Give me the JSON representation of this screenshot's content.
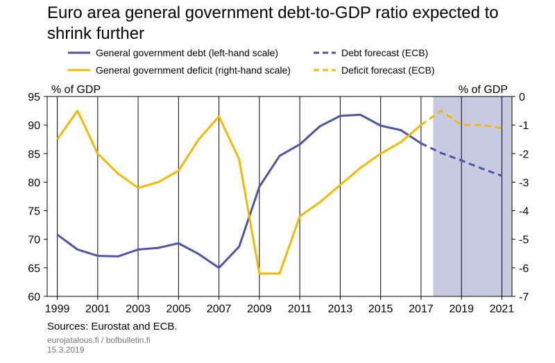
{
  "header": {
    "title": "Euro area general government debt-to-GDP ratio expected to shrink further"
  },
  "legend": [
    {
      "label": "General government debt (left-hand scale)",
      "color": "#4b55a3",
      "dashed": false
    },
    {
      "label": "Debt forecast (ECB)",
      "color": "#4b55a3",
      "dashed": true
    },
    {
      "label": "General government deficit (right-hand scale)",
      "color": "#f5b800",
      "dashed": false
    },
    {
      "label": "Deficit forecast (ECB)",
      "color": "#f5b800",
      "dashed": true
    }
  ],
  "chart_data": {
    "type": "line",
    "title": "Euro area general government debt-to-GDP ratio expected to shrink further",
    "xlim": [
      1998.5,
      2021.5
    ],
    "x_ticks": [
      1999,
      2001,
      2003,
      2005,
      2007,
      2009,
      2011,
      2013,
      2015,
      2017,
      2019,
      2021
    ],
    "ylabel_left": "% of GDP",
    "ylabel_right": "% of GDP",
    "ylim_left": [
      60,
      95
    ],
    "y_ticks_left": [
      60,
      65,
      70,
      75,
      80,
      85,
      90,
      95
    ],
    "ylim_right": [
      -7,
      0
    ],
    "y_ticks_right": [
      -7,
      -6,
      -5,
      -4,
      -3,
      -2,
      -1,
      0
    ],
    "forecast_region": [
      2017.6,
      2021.5
    ],
    "forecast_shade_color": "#c8c9e3",
    "grid": "vertical",
    "series": [
      {
        "name": "General government debt (left-hand scale)",
        "axis": "left",
        "color": "#4b55a3",
        "dashed": false,
        "x": [
          1999,
          2000,
          2001,
          2002,
          2003,
          2004,
          2005,
          2006,
          2007,
          2008,
          2009,
          2010,
          2011,
          2012,
          2013,
          2014,
          2015,
          2016,
          2017
        ],
        "y": [
          70.8,
          68.2,
          67.1,
          67.0,
          68.2,
          68.5,
          69.3,
          67.4,
          65.0,
          68.7,
          79.2,
          84.6,
          86.6,
          89.8,
          91.6,
          91.8,
          89.9,
          89.1,
          86.8
        ]
      },
      {
        "name": "Debt forecast (ECB)",
        "axis": "left",
        "color": "#4b55a3",
        "dashed": true,
        "x": [
          2017,
          2018,
          2019,
          2020,
          2021
        ],
        "y": [
          86.8,
          85.1,
          83.8,
          82.4,
          81.1
        ]
      },
      {
        "name": "General government deficit (right-hand scale)",
        "axis": "right",
        "color": "#f5b800",
        "dashed": false,
        "x": [
          1999,
          2000,
          2001,
          2002,
          2003,
          2004,
          2005,
          2006,
          2007,
          2008,
          2009,
          2010,
          2011,
          2012,
          2013,
          2014,
          2015,
          2016,
          2017
        ],
        "y": [
          -1.5,
          -0.5,
          -2.0,
          -2.7,
          -3.2,
          -3.0,
          -2.6,
          -1.5,
          -0.7,
          -2.2,
          -6.2,
          -6.2,
          -4.2,
          -3.7,
          -3.1,
          -2.5,
          -2.0,
          -1.6,
          -1.0
        ]
      },
      {
        "name": "Deficit forecast (ECB)",
        "axis": "right",
        "color": "#f5b800",
        "dashed": true,
        "x": [
          2017,
          2018,
          2019,
          2020,
          2021
        ],
        "y": [
          -1.0,
          -0.5,
          -1.0,
          -1.0,
          -1.1
        ]
      }
    ]
  },
  "footer": {
    "sources": "Sources: Eurostat and ECB.",
    "site": "eurojatalous.fi / bofbulletin.fi",
    "date": "15.3.2019"
  }
}
